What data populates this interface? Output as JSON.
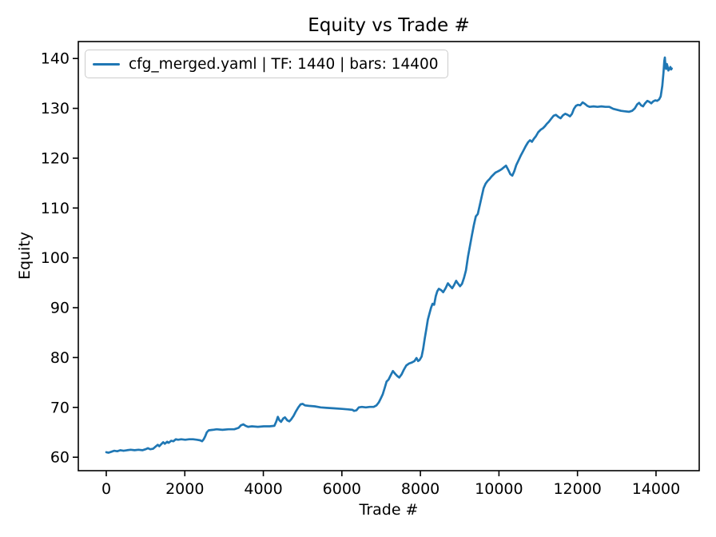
{
  "figure": {
    "title": "Equity vs Trade #",
    "xlabel": "Trade #",
    "ylabel": "Equity"
  },
  "legend": {
    "label": "cfg_merged.yaml | TF: 1440 | bars: 14400",
    "line_color": "#1f77b4"
  },
  "chart_data": {
    "type": "line",
    "title": "Equity vs Trade #",
    "xlabel": "Trade #",
    "ylabel": "Equity",
    "xlim": [
      -712,
      15100
    ],
    "ylim": [
      57.3,
      143.4
    ],
    "xticks": [
      0,
      2000,
      4000,
      6000,
      8000,
      10000,
      12000,
      14000
    ],
    "yticks": [
      60,
      70,
      80,
      90,
      100,
      110,
      120,
      130,
      140
    ],
    "grid": false,
    "legend_position": "upper left",
    "series": [
      {
        "name": "cfg_merged.yaml | TF: 1440 | bars: 14400",
        "color": "#1f77b4",
        "x": [
          0,
          60,
          130,
          200,
          280,
          360,
          440,
          530,
          620,
          720,
          820,
          920,
          1000,
          1060,
          1120,
          1190,
          1250,
          1310,
          1350,
          1410,
          1450,
          1490,
          1550,
          1590,
          1650,
          1710,
          1770,
          1830,
          1910,
          2010,
          2110,
          2210,
          2310,
          2390,
          2440,
          2480,
          2520,
          2560,
          2610,
          2710,
          2810,
          2960,
          3110,
          3260,
          3370,
          3430,
          3490,
          3550,
          3610,
          3710,
          3860,
          4010,
          4160,
          4280,
          4330,
          4370,
          4410,
          4450,
          4510,
          4550,
          4610,
          4660,
          4710,
          4770,
          4830,
          4890,
          4950,
          5000,
          5060,
          5160,
          5310,
          5460,
          5610,
          5810,
          6010,
          6160,
          6270,
          6310,
          6370,
          6430,
          6510,
          6610,
          6710,
          6810,
          6880,
          6940,
          6990,
          7040,
          7090,
          7140,
          7190,
          7240,
          7300,
          7350,
          7410,
          7460,
          7520,
          7580,
          7640,
          7710,
          7780,
          7850,
          7900,
          7940,
          7980,
          8030,
          8070,
          8110,
          8150,
          8190,
          8230,
          8270,
          8310,
          8350,
          8390,
          8430,
          8470,
          8530,
          8580,
          8640,
          8700,
          8750,
          8810,
          8860,
          8910,
          8960,
          9010,
          9060,
          9110,
          9160,
          9210,
          9260,
          9310,
          9360,
          9410,
          9460,
          9510,
          9560,
          9610,
          9660,
          9710,
          9760,
          9810,
          9860,
          9910,
          9960,
          10010,
          10070,
          10130,
          10180,
          10240,
          10290,
          10340,
          10390,
          10440,
          10500,
          10560,
          10620,
          10680,
          10740,
          10790,
          10840,
          10890,
          10940,
          11000,
          11060,
          11120,
          11170,
          11220,
          11270,
          11330,
          11390,
          11450,
          11510,
          11570,
          11630,
          11690,
          11750,
          11810,
          11860,
          11910,
          11960,
          12010,
          12070,
          12130,
          12190,
          12250,
          12310,
          12410,
          12510,
          12610,
          12710,
          12810,
          12910,
          13010,
          13110,
          13210,
          13310,
          13390,
          13460,
          13520,
          13570,
          13620,
          13670,
          13720,
          13780,
          13830,
          13880,
          13930,
          13980,
          14030,
          14080,
          14120,
          14160,
          14190,
          14210,
          14225,
          14240,
          14255,
          14275,
          14295,
          14315,
          14340,
          14365,
          14385,
          14400
        ],
        "y": [
          61.0,
          60.9,
          61.1,
          61.3,
          61.2,
          61.4,
          61.3,
          61.4,
          61.5,
          61.4,
          61.5,
          61.4,
          61.6,
          61.8,
          61.6,
          61.7,
          62.1,
          62.5,
          62.2,
          62.7,
          63.0,
          62.7,
          63.1,
          62.9,
          63.3,
          63.2,
          63.6,
          63.5,
          63.6,
          63.5,
          63.6,
          63.6,
          63.5,
          63.4,
          63.2,
          63.6,
          64.2,
          65.0,
          65.4,
          65.5,
          65.6,
          65.5,
          65.6,
          65.6,
          65.9,
          66.4,
          66.6,
          66.3,
          66.1,
          66.2,
          66.1,
          66.2,
          66.2,
          66.3,
          67.2,
          68.1,
          67.4,
          67.1,
          67.8,
          68.0,
          67.4,
          67.2,
          67.6,
          68.3,
          69.2,
          70.0,
          70.6,
          70.7,
          70.4,
          70.3,
          70.2,
          70.0,
          69.9,
          69.8,
          69.7,
          69.6,
          69.5,
          69.3,
          69.4,
          70.0,
          70.1,
          70.0,
          70.1,
          70.1,
          70.4,
          71.0,
          71.8,
          72.6,
          73.9,
          75.2,
          75.6,
          76.4,
          77.3,
          76.8,
          76.3,
          76.0,
          76.6,
          77.6,
          78.4,
          78.8,
          79.0,
          79.3,
          79.9,
          79.3,
          79.5,
          80.2,
          81.7,
          83.8,
          85.7,
          87.6,
          88.8,
          90.0,
          90.8,
          90.6,
          92.3,
          93.3,
          93.8,
          93.5,
          93.1,
          93.9,
          94.9,
          94.4,
          93.9,
          94.6,
          95.4,
          94.8,
          94.3,
          94.8,
          96.0,
          97.5,
          100.2,
          102.3,
          104.5,
          106.5,
          108.3,
          108.8,
          110.5,
          112.3,
          114.0,
          114.9,
          115.4,
          115.8,
          116.3,
          116.7,
          117.1,
          117.3,
          117.5,
          117.8,
          118.2,
          118.5,
          117.6,
          116.8,
          116.5,
          117.4,
          118.6,
          119.6,
          120.6,
          121.5,
          122.4,
          123.2,
          123.6,
          123.3,
          123.9,
          124.4,
          125.2,
          125.7,
          126.0,
          126.4,
          126.9,
          127.3,
          127.9,
          128.5,
          128.7,
          128.3,
          128.0,
          128.6,
          128.9,
          128.7,
          128.4,
          128.9,
          129.9,
          130.5,
          130.7,
          130.6,
          131.2,
          130.9,
          130.5,
          130.3,
          130.4,
          130.3,
          130.4,
          130.3,
          130.3,
          129.9,
          129.7,
          129.5,
          129.4,
          129.3,
          129.5,
          130.0,
          130.8,
          131.1,
          130.6,
          130.4,
          131.0,
          131.5,
          131.3,
          131.0,
          131.4,
          131.6,
          131.5,
          131.8,
          132.4,
          134.5,
          137.2,
          139.5,
          140.2,
          138.6,
          137.9,
          138.9,
          138.4,
          137.6,
          137.9,
          138.3,
          137.8,
          138.0
        ]
      }
    ]
  }
}
